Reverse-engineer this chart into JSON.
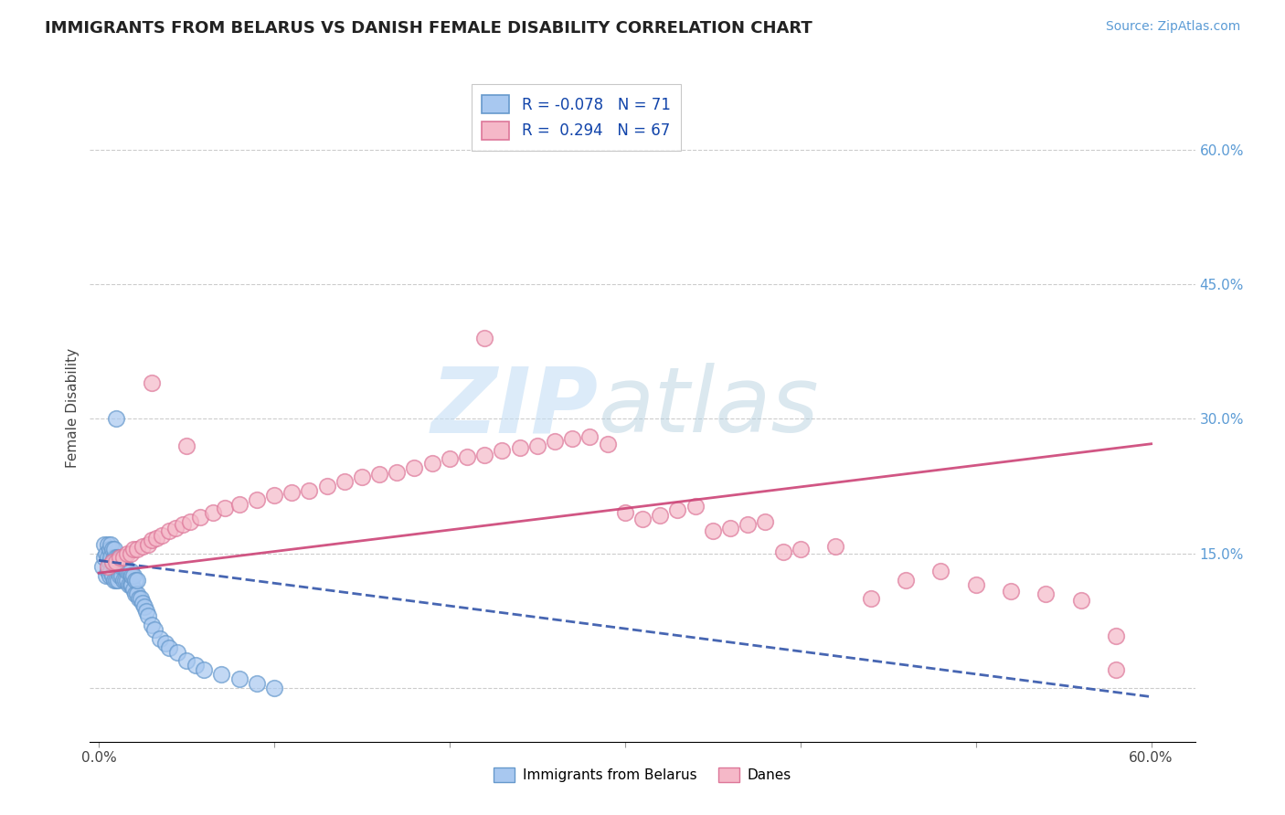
{
  "title": "IMMIGRANTS FROM BELARUS VS DANISH FEMALE DISABILITY CORRELATION CHART",
  "source": "Source: ZipAtlas.com",
  "ylabel": "Female Disability",
  "series1_label": "Immigrants from Belarus",
  "series2_label": "Danes",
  "series1_color": "#a8c8f0",
  "series2_color": "#f5b8c8",
  "series1_edge_color": "#6699cc",
  "series2_edge_color": "#dd7799",
  "series1_R": -0.078,
  "series1_N": 71,
  "series2_R": 0.294,
  "series2_N": 67,
  "series1_line_color": "#3355aa",
  "series2_line_color": "#cc4477",
  "background_color": "#ffffff",
  "series1_x": [
    0.002,
    0.003,
    0.003,
    0.004,
    0.004,
    0.005,
    0.005,
    0.005,
    0.006,
    0.006,
    0.006,
    0.007,
    0.007,
    0.007,
    0.008,
    0.008,
    0.008,
    0.009,
    0.009,
    0.009,
    0.009,
    0.01,
    0.01,
    0.01,
    0.01,
    0.011,
    0.011,
    0.011,
    0.012,
    0.012,
    0.012,
    0.013,
    0.013,
    0.013,
    0.014,
    0.014,
    0.015,
    0.015,
    0.016,
    0.016,
    0.017,
    0.017,
    0.018,
    0.018,
    0.019,
    0.019,
    0.02,
    0.02,
    0.021,
    0.021,
    0.022,
    0.022,
    0.023,
    0.024,
    0.025,
    0.026,
    0.027,
    0.028,
    0.03,
    0.032,
    0.035,
    0.038,
    0.04,
    0.045,
    0.05,
    0.055,
    0.06,
    0.07,
    0.08,
    0.09,
    0.1
  ],
  "series1_y": [
    0.135,
    0.145,
    0.16,
    0.125,
    0.15,
    0.13,
    0.145,
    0.16,
    0.125,
    0.14,
    0.155,
    0.13,
    0.145,
    0.16,
    0.125,
    0.14,
    0.155,
    0.12,
    0.135,
    0.145,
    0.155,
    0.12,
    0.135,
    0.145,
    0.3,
    0.12,
    0.135,
    0.145,
    0.125,
    0.135,
    0.145,
    0.125,
    0.135,
    0.145,
    0.12,
    0.135,
    0.12,
    0.135,
    0.12,
    0.13,
    0.115,
    0.13,
    0.115,
    0.13,
    0.115,
    0.125,
    0.11,
    0.125,
    0.105,
    0.12,
    0.105,
    0.12,
    0.1,
    0.1,
    0.095,
    0.09,
    0.085,
    0.08,
    0.07,
    0.065,
    0.055,
    0.05,
    0.045,
    0.04,
    0.03,
    0.025,
    0.02,
    0.015,
    0.01,
    0.005,
    0.0
  ],
  "series2_x": [
    0.005,
    0.008,
    0.01,
    0.012,
    0.014,
    0.016,
    0.018,
    0.02,
    0.022,
    0.025,
    0.028,
    0.03,
    0.033,
    0.036,
    0.04,
    0.044,
    0.048,
    0.052,
    0.058,
    0.065,
    0.072,
    0.08,
    0.09,
    0.1,
    0.11,
    0.12,
    0.13,
    0.14,
    0.15,
    0.16,
    0.17,
    0.18,
    0.19,
    0.2,
    0.21,
    0.22,
    0.23,
    0.24,
    0.25,
    0.26,
    0.27,
    0.28,
    0.29,
    0.3,
    0.31,
    0.32,
    0.33,
    0.34,
    0.35,
    0.36,
    0.37,
    0.38,
    0.39,
    0.4,
    0.42,
    0.44,
    0.46,
    0.48,
    0.5,
    0.52,
    0.54,
    0.56,
    0.58,
    0.22,
    0.03,
    0.05,
    0.58
  ],
  "series2_y": [
    0.135,
    0.14,
    0.14,
    0.145,
    0.145,
    0.15,
    0.15,
    0.155,
    0.155,
    0.158,
    0.16,
    0.165,
    0.167,
    0.17,
    0.175,
    0.178,
    0.182,
    0.185,
    0.19,
    0.195,
    0.2,
    0.205,
    0.21,
    0.215,
    0.218,
    0.22,
    0.225,
    0.23,
    0.235,
    0.238,
    0.24,
    0.245,
    0.25,
    0.255,
    0.258,
    0.26,
    0.265,
    0.268,
    0.27,
    0.275,
    0.278,
    0.28,
    0.272,
    0.195,
    0.188,
    0.192,
    0.198,
    0.202,
    0.175,
    0.178,
    0.182,
    0.185,
    0.152,
    0.155,
    0.158,
    0.1,
    0.12,
    0.13,
    0.115,
    0.108,
    0.105,
    0.098,
    0.058,
    0.39,
    0.34,
    0.27,
    0.02
  ],
  "series1_line_x0": 0.0,
  "series1_line_y0": 0.142,
  "series1_line_x1": 0.6,
  "series1_line_y1": -0.01,
  "series2_line_x0": 0.0,
  "series2_line_y0": 0.128,
  "series2_line_x1": 0.6,
  "series2_line_y1": 0.272,
  "xlim_min": -0.005,
  "xlim_max": 0.625,
  "ylim_min": -0.06,
  "ylim_max": 0.685,
  "yticks": [
    0.0,
    0.15,
    0.3,
    0.45,
    0.6
  ],
  "ytick_labels": [
    "",
    "15.0%",
    "30.0%",
    "45.0%",
    "60.0%"
  ],
  "xticks": [
    0.0,
    0.1,
    0.2,
    0.3,
    0.4,
    0.5,
    0.6
  ],
  "xtick_labels_show": [
    "0.0%",
    "60.0%"
  ]
}
